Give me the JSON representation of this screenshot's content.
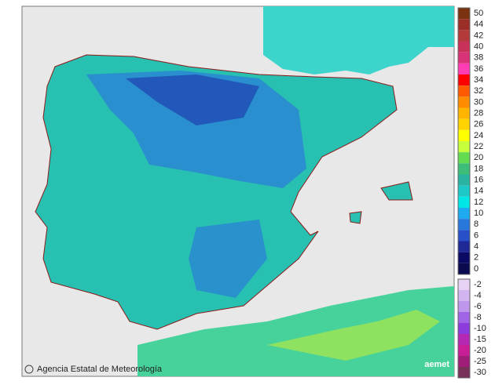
{
  "credit": "Agencia Estatal de Meteorología",
  "logo": "aemet",
  "legend": {
    "positive": [
      {
        "value": 50,
        "color": "#7a3210"
      },
      {
        "value": 44,
        "color": "#9c2e28"
      },
      {
        "value": 42,
        "color": "#b23a3a"
      },
      {
        "value": 40,
        "color": "#c83258"
      },
      {
        "value": 38,
        "color": "#d83278"
      },
      {
        "value": 36,
        "color": "#ff3cb4"
      },
      {
        "value": 34,
        "color": "#ff0000"
      },
      {
        "value": 32,
        "color": "#ff5a00"
      },
      {
        "value": 30,
        "color": "#ff8c00"
      },
      {
        "value": 28,
        "color": "#ffb400"
      },
      {
        "value": 26,
        "color": "#ffd200"
      },
      {
        "value": 24,
        "color": "#ffff00"
      },
      {
        "value": 22,
        "color": "#c8ff3c"
      },
      {
        "value": 20,
        "color": "#64dc50"
      },
      {
        "value": 18,
        "color": "#3cbe78"
      },
      {
        "value": 16,
        "color": "#28b4a0"
      },
      {
        "value": 14,
        "color": "#1ec8c8"
      },
      {
        "value": 12,
        "color": "#00e6e6"
      },
      {
        "value": 10,
        "color": "#1eaaf0"
      },
      {
        "value": 8,
        "color": "#2878dc"
      },
      {
        "value": 6,
        "color": "#2850c8"
      },
      {
        "value": 4,
        "color": "#1e2896"
      },
      {
        "value": 2,
        "color": "#0a0a64"
      },
      {
        "value": 0,
        "color": "#0a0a50"
      }
    ],
    "negative": [
      {
        "value": -2,
        "color": "#e6d2f5"
      },
      {
        "value": -4,
        "color": "#d2b4f0"
      },
      {
        "value": -6,
        "color": "#be96eb"
      },
      {
        "value": -8,
        "color": "#a064e6"
      },
      {
        "value": -10,
        "color": "#8c3cdc"
      },
      {
        "value": -15,
        "color": "#b428b4"
      },
      {
        "value": -20,
        "color": "#c81e96"
      },
      {
        "value": -25,
        "color": "#a01e78"
      },
      {
        "value": -30,
        "color": "#78325a"
      }
    ]
  }
}
